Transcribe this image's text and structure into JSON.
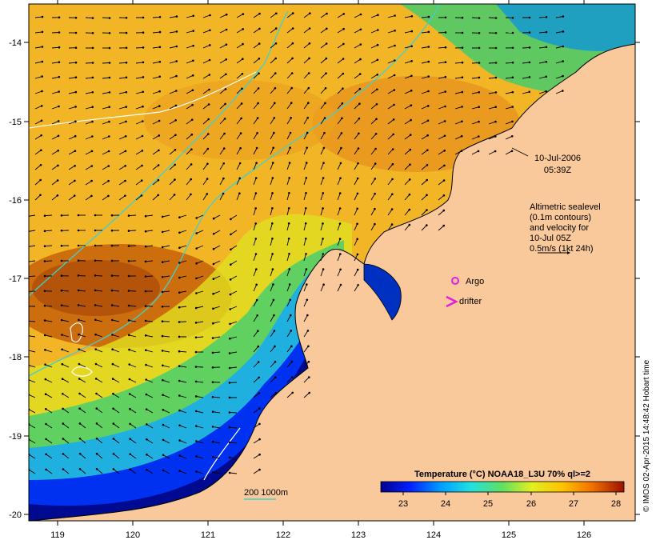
{
  "map": {
    "x_ticks": [
      "119",
      "120",
      "121",
      "122",
      "123",
      "124",
      "125",
      "126"
    ],
    "y_ticks": [
      "-14",
      "-15",
      "-16",
      "-17",
      "-18",
      "-19",
      "-20"
    ],
    "timestamp_date": "10-Jul-2006",
    "timestamp_time": "05:39Z",
    "altimetry_lines": [
      "Altimetric sealevel",
      "(0.1m contours)",
      "and velocity for",
      "10-Jul 05Z",
      "0.5m/s (1kt 24h)"
    ],
    "argo_label": "Argo",
    "drifter_label": "drifter",
    "depth_label": "200  1000m",
    "colorbar": {
      "title": "Temperature (°C) NOAA18_L3U 70% ql>=2",
      "ticks": [
        "23",
        "24",
        "25",
        "26",
        "27",
        "28"
      ]
    },
    "credit": "© IMOS 02-Apr-2015 14:48:42 Hobart time",
    "colors": {
      "land": "#f9c89b",
      "warm": "#f0a020",
      "cool": "#00209a",
      "contour": "#40d0d0"
    }
  }
}
